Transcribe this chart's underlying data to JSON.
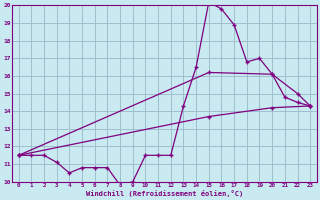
{
  "xlabel": "Windchill (Refroidissement éolien,°C)",
  "bg_color": "#c8eaf0",
  "line_color": "#800080",
  "grid_color": "#9fbfcf",
  "xlim": [
    -0.5,
    23.5
  ],
  "ylim": [
    10,
    20
  ],
  "yticks": [
    10,
    11,
    12,
    13,
    14,
    15,
    16,
    17,
    18,
    19,
    20
  ],
  "xticks": [
    0,
    1,
    2,
    3,
    4,
    5,
    6,
    7,
    8,
    9,
    10,
    11,
    12,
    13,
    14,
    15,
    16,
    17,
    18,
    19,
    20,
    21,
    22,
    23
  ],
  "line1_x": [
    0,
    1,
    2,
    3,
    4,
    5,
    6,
    7,
    8,
    9,
    10,
    11,
    12,
    13,
    14,
    15,
    16,
    17,
    18,
    19,
    20,
    21,
    22,
    23
  ],
  "line1_y": [
    11.5,
    11.5,
    11.5,
    11.1,
    10.5,
    10.8,
    10.8,
    10.8,
    9.8,
    10.0,
    11.5,
    11.5,
    11.5,
    14.3,
    16.5,
    20.2,
    19.8,
    18.9,
    16.8,
    17.0,
    16.1,
    14.8,
    14.5,
    14.3
  ],
  "line2_x": [
    0,
    15,
    20,
    22,
    23
  ],
  "line2_y": [
    11.5,
    16.2,
    16.1,
    15.0,
    14.3
  ],
  "line3_x": [
    0,
    15,
    20,
    23
  ],
  "line3_y": [
    11.5,
    13.7,
    14.2,
    14.3
  ]
}
